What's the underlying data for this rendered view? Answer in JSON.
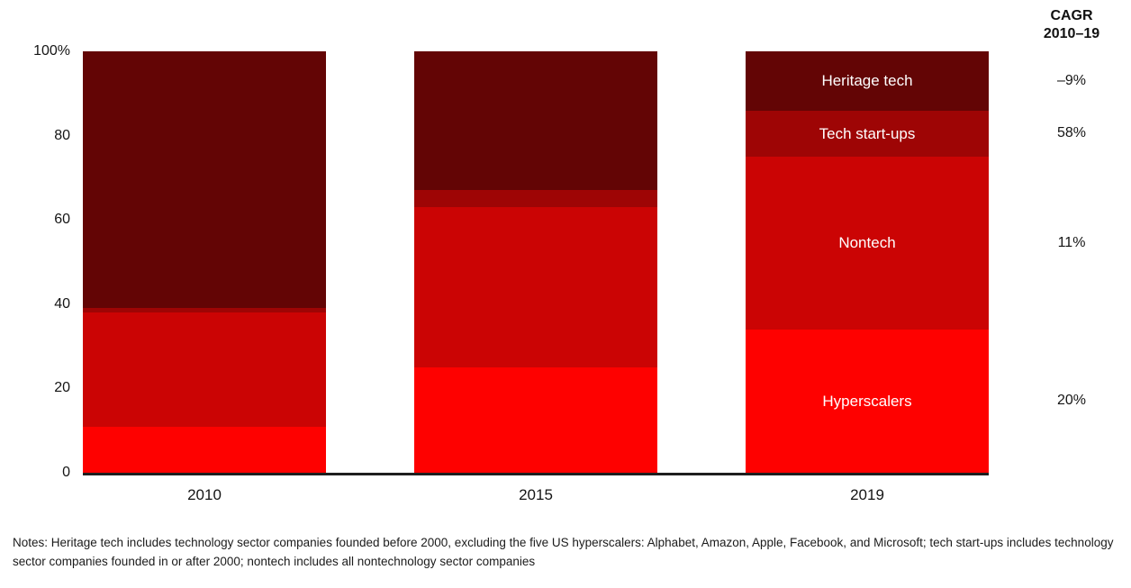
{
  "figure": {
    "cagr_header_line1": "CAGR",
    "cagr_header_line2": "2010–19",
    "notes": "Notes: Heritage tech includes technology sector companies founded before 2000, excluding the five US hyperscalers: Alphabet, Amazon, Apple, Facebook, and Microsoft; tech start-ups includes technology sector companies founded in or after 2000; nontech includes all nontechnology sector companies"
  },
  "chart_data": {
    "type": "bar",
    "stacked": true,
    "unit": "% share",
    "categories": [
      "2010",
      "2015",
      "2019"
    ],
    "series": [
      {
        "key": "hyperscalers",
        "name": "Hyperscalers",
        "color": "#fe0100",
        "values": [
          11,
          25,
          34
        ],
        "cagr_2010_19": "20%"
      },
      {
        "key": "nontech",
        "name": "Nontech",
        "color": "#cb0404",
        "values": [
          27,
          38,
          41
        ],
        "cagr_2010_19": "11%"
      },
      {
        "key": "tech-start-ups",
        "name": "Tech start-ups",
        "color": "#9e0505",
        "values": [
          1,
          4,
          11
        ],
        "cagr_2010_19": "58%"
      },
      {
        "key": "heritage-tech",
        "name": "Heritage tech",
        "color": "#630505",
        "values": [
          61,
          33,
          14
        ],
        "cagr_2010_19": "–9%"
      }
    ],
    "stack_order_bottom_to_top": [
      "Hyperscalers",
      "Nontech",
      "Tech start-ups",
      "Heritage tech"
    ],
    "ylim": [
      0,
      100
    ],
    "yticks": [
      {
        "label": "100%",
        "value": 100
      },
      {
        "label": "80",
        "value": 80
      },
      {
        "label": "60",
        "value": 60
      },
      {
        "label": "40",
        "value": 40
      },
      {
        "label": "20",
        "value": 20
      },
      {
        "label": "0",
        "value": 0
      }
    ],
    "grid": false,
    "labels_inside_last_bar": true,
    "legend_position": "inside-2019-bar"
  }
}
